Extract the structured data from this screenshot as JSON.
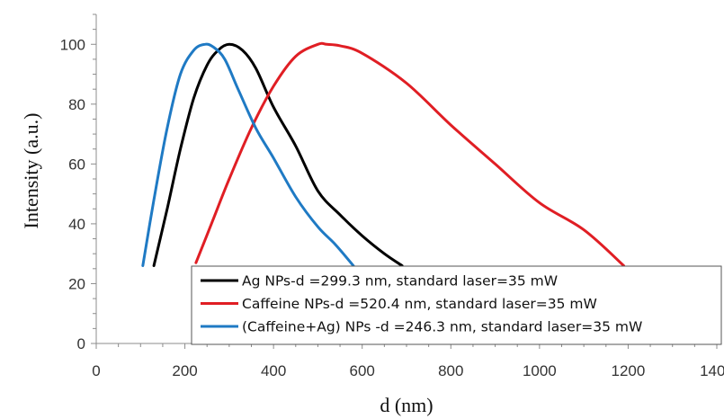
{
  "chart_data": {
    "type": "line",
    "title": "",
    "xlabel": "d (nm)",
    "ylabel": "Intensity (a.u.)",
    "xlim": [
      0,
      1400
    ],
    "ylim": [
      0,
      110
    ],
    "xticks": [
      "0",
      "200",
      "400",
      "600",
      "800",
      "1000",
      "1200",
      "1400"
    ],
    "yticks": [
      "0",
      "20",
      "40",
      "60",
      "80",
      "100"
    ],
    "grid": false,
    "legend_position": "bottom-right",
    "series": [
      {
        "name": "Ag NPs-d =299.3 nm, standard laser=35 mW",
        "color": "#000000",
        "x": [
          130,
          160,
          190,
          220,
          250,
          275,
          300,
          330,
          360,
          400,
          450,
          500,
          550,
          600,
          650,
          690
        ],
        "y": [
          26,
          45,
          65,
          82,
          93,
          98,
          100,
          98,
          92,
          79,
          66,
          51,
          43,
          36,
          30,
          26
        ]
      },
      {
        "name": "Caffeine NPs-d =520.4 nm, standard laser=35 mW",
        "color": "#e01e24",
        "x": [
          225,
          260,
          300,
          350,
          400,
          450,
          500,
          520,
          550,
          600,
          700,
          800,
          900,
          1000,
          1100,
          1190
        ],
        "y": [
          27,
          40,
          55,
          72,
          86,
          96,
          100,
          100,
          99.5,
          97,
          87,
          73,
          60,
          47,
          38,
          26
        ]
      },
      {
        "name": "(Caffeine+Ag) NPs -d =246.3 nm, standard laser=35 mW",
        "color": "#1f7ac4",
        "x": [
          105,
          130,
          160,
          190,
          220,
          245,
          265,
          290,
          320,
          360,
          400,
          450,
          500,
          540,
          580
        ],
        "y": [
          26,
          48,
          72,
          90,
          98,
          100,
          99,
          95,
          85,
          72,
          62,
          49,
          39,
          33,
          26
        ]
      }
    ]
  }
}
